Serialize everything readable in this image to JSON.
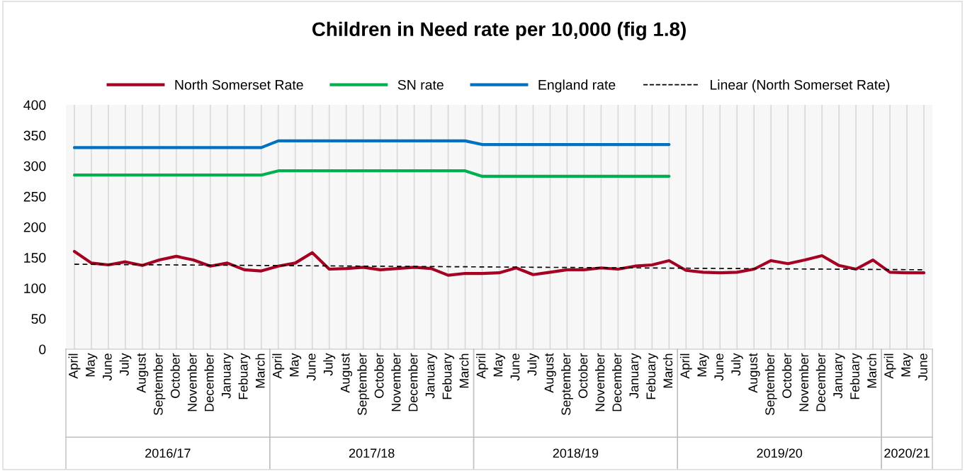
{
  "chart_data": {
    "type": "line",
    "title": "Children in Need rate per 10,000 (fig 1.8)",
    "categories": [
      "April",
      "May",
      "June",
      "July",
      "August",
      "September",
      "October",
      "November",
      "December",
      "January",
      "Febuary",
      "March",
      "April",
      "May",
      "June",
      "July",
      "August",
      "September",
      "October",
      "November",
      "December",
      "January",
      "Febuary",
      "March",
      "April",
      "May",
      "June",
      "July",
      "August",
      "September",
      "October",
      "November",
      "December",
      "January",
      "Febuary",
      "March",
      "April",
      "May",
      "June",
      "July",
      "August",
      "September",
      "October",
      "November",
      "December",
      "January",
      "Febuary",
      "March",
      "April",
      "May",
      "June"
    ],
    "series": [
      {
        "name": "North Somerset Rate",
        "color": "#a50021",
        "values": [
          160,
          141,
          138,
          143,
          137,
          146,
          152,
          146,
          136,
          141,
          130,
          128,
          136,
          141,
          158,
          131,
          132,
          134,
          130,
          132,
          134,
          132,
          121,
          124,
          124,
          125,
          133,
          122,
          126,
          130,
          130,
          133,
          131,
          136,
          138,
          145,
          129,
          126,
          125,
          126,
          131,
          145,
          140,
          146,
          153,
          137,
          131,
          146,
          126,
          125,
          125
        ]
      },
      {
        "name": "SN rate",
        "color": "#00b050",
        "values": [
          285,
          285,
          285,
          285,
          285,
          285,
          285,
          285,
          285,
          285,
          285,
          285,
          292,
          292,
          292,
          292,
          292,
          292,
          292,
          292,
          292,
          292,
          292,
          292,
          283,
          283,
          283,
          283,
          283,
          283,
          283,
          283,
          283,
          283,
          283,
          283,
          null,
          null,
          null,
          null,
          null,
          null,
          null,
          null,
          null,
          null,
          null,
          null,
          null,
          null,
          null
        ]
      },
      {
        "name": "England rate",
        "color": "#0070c0",
        "values": [
          330,
          330,
          330,
          330,
          330,
          330,
          330,
          330,
          330,
          330,
          330,
          330,
          341,
          341,
          341,
          341,
          341,
          341,
          341,
          341,
          341,
          341,
          341,
          341,
          335,
          335,
          335,
          335,
          335,
          335,
          335,
          335,
          335,
          335,
          335,
          335,
          null,
          null,
          null,
          null,
          null,
          null,
          null,
          null,
          null,
          null,
          null,
          null,
          null,
          null,
          null
        ]
      },
      {
        "name": "Linear (North Somerset Rate)",
        "color": "#000000",
        "line_style": "dashed",
        "values": [
          139,
          null,
          null,
          null,
          null,
          null,
          null,
          null,
          null,
          null,
          null,
          null,
          null,
          null,
          null,
          null,
          null,
          null,
          null,
          null,
          null,
          null,
          null,
          null,
          null,
          null,
          null,
          null,
          null,
          null,
          null,
          null,
          null,
          null,
          null,
          null,
          null,
          null,
          null,
          null,
          null,
          null,
          null,
          null,
          null,
          null,
          null,
          null,
          null,
          null,
          130
        ]
      }
    ],
    "annotations": [
      "2016/17",
      "2017/18",
      "2018/19",
      "2019/20",
      "2020/21"
    ],
    "ylim": [
      0,
      400
    ],
    "yticks": [
      0,
      50,
      100,
      150,
      200,
      250,
      300,
      350,
      400
    ],
    "grid": "x",
    "legend": "top",
    "marker": "none",
    "line_style": "solid"
  }
}
